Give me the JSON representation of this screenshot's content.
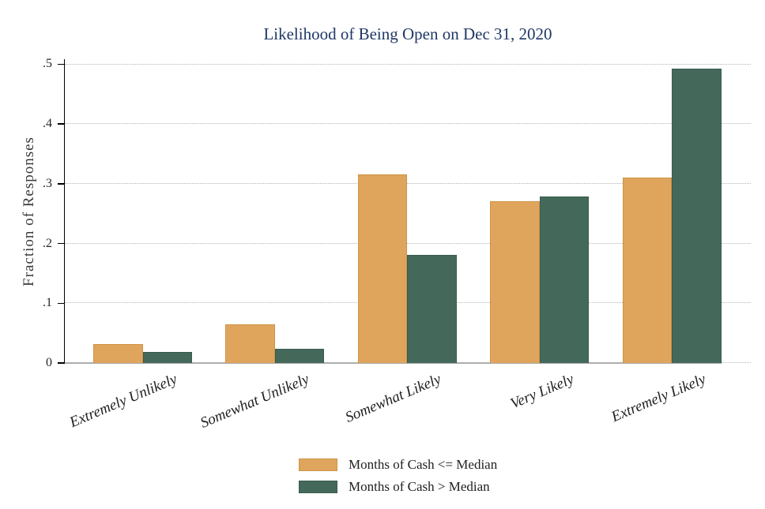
{
  "title": "Likelihood of Being Open on Dec 31, 2020",
  "chart_data": {
    "type": "bar",
    "title": "Likelihood of Being Open on Dec 31, 2020",
    "xlabel": "",
    "ylabel": "Fraction of Responses",
    "ylim": [
      0,
      0.5
    ],
    "yticks": [
      0,
      0.1,
      0.2,
      0.3,
      0.4,
      0.5
    ],
    "ytick_labels": [
      "0",
      ".1",
      ".2",
      ".3",
      ".4",
      ".5"
    ],
    "grid": "horizontal-dotted",
    "legend_position": "bottom",
    "categories": [
      "Extremely Unlikely",
      "Somewhat Unlikely",
      "Somewhat Likely",
      "Very Likely",
      "Extremely Likely"
    ],
    "series": [
      {
        "name": "Months of Cash <= Median",
        "color": "#E0A55C",
        "border_color": "#CE9347",
        "values": [
          0.032,
          0.065,
          0.316,
          0.271,
          0.31
        ]
      },
      {
        "name": "Months of Cash > Median",
        "color": "#44695A",
        "border_color": "#3A5B4E",
        "values": [
          0.018,
          0.024,
          0.181,
          0.278,
          0.493
        ]
      }
    ]
  },
  "colors": {
    "title_text": "#1f3864",
    "axis_text": "#262626",
    "axis_line": "#000000",
    "baseline": "#ababab",
    "gridline": "#b4b4b4",
    "background": "#ffffff"
  }
}
